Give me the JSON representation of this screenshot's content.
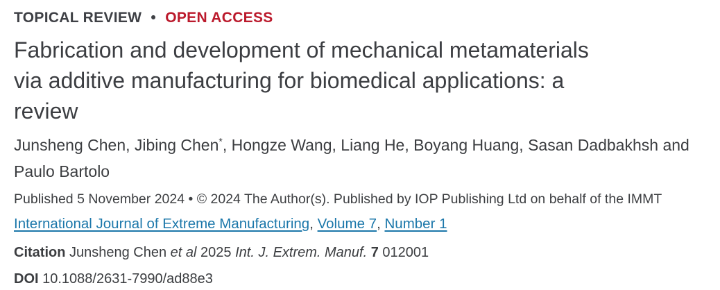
{
  "eyebrow": {
    "article_type": "TOPICAL REVIEW",
    "separator": "•",
    "open_access": "OPEN ACCESS"
  },
  "title": "Fabrication and development of mechanical metamaterials via additive manufacturing for biomedical applications: a review",
  "authors": {
    "group_before_asterisk": "Junsheng Chen, Jibing Chen",
    "asterisk": "*",
    "group_after_asterisk": ", Hongze Wang, Liang He, Boyang Huang, Sasan Dadbakhsh and Paulo Bartolo"
  },
  "published_line": "Published 5 November 2024 • © 2024 The Author(s). Published by IOP Publishing Ltd on behalf of the IMMT",
  "journal_line": {
    "journal_link": "International Journal of Extreme Manufacturing",
    "separator": ",",
    "volume_link": "Volume 7",
    "number_link": "Number 1"
  },
  "citation": {
    "label": "Citation",
    "authors": "Junsheng Chen",
    "et_al": "et al",
    "year": "2025",
    "journal_abbrev": "Int. J. Extrem. Manuf.",
    "volume": "7",
    "article_number": "012001"
  },
  "doi": {
    "label": "DOI",
    "value": "10.1088/2631-7990/ad88e3"
  },
  "colors": {
    "text": "#3b3d40",
    "accent_red": "#bb1a2c",
    "link_blue": "#1b77aa"
  }
}
